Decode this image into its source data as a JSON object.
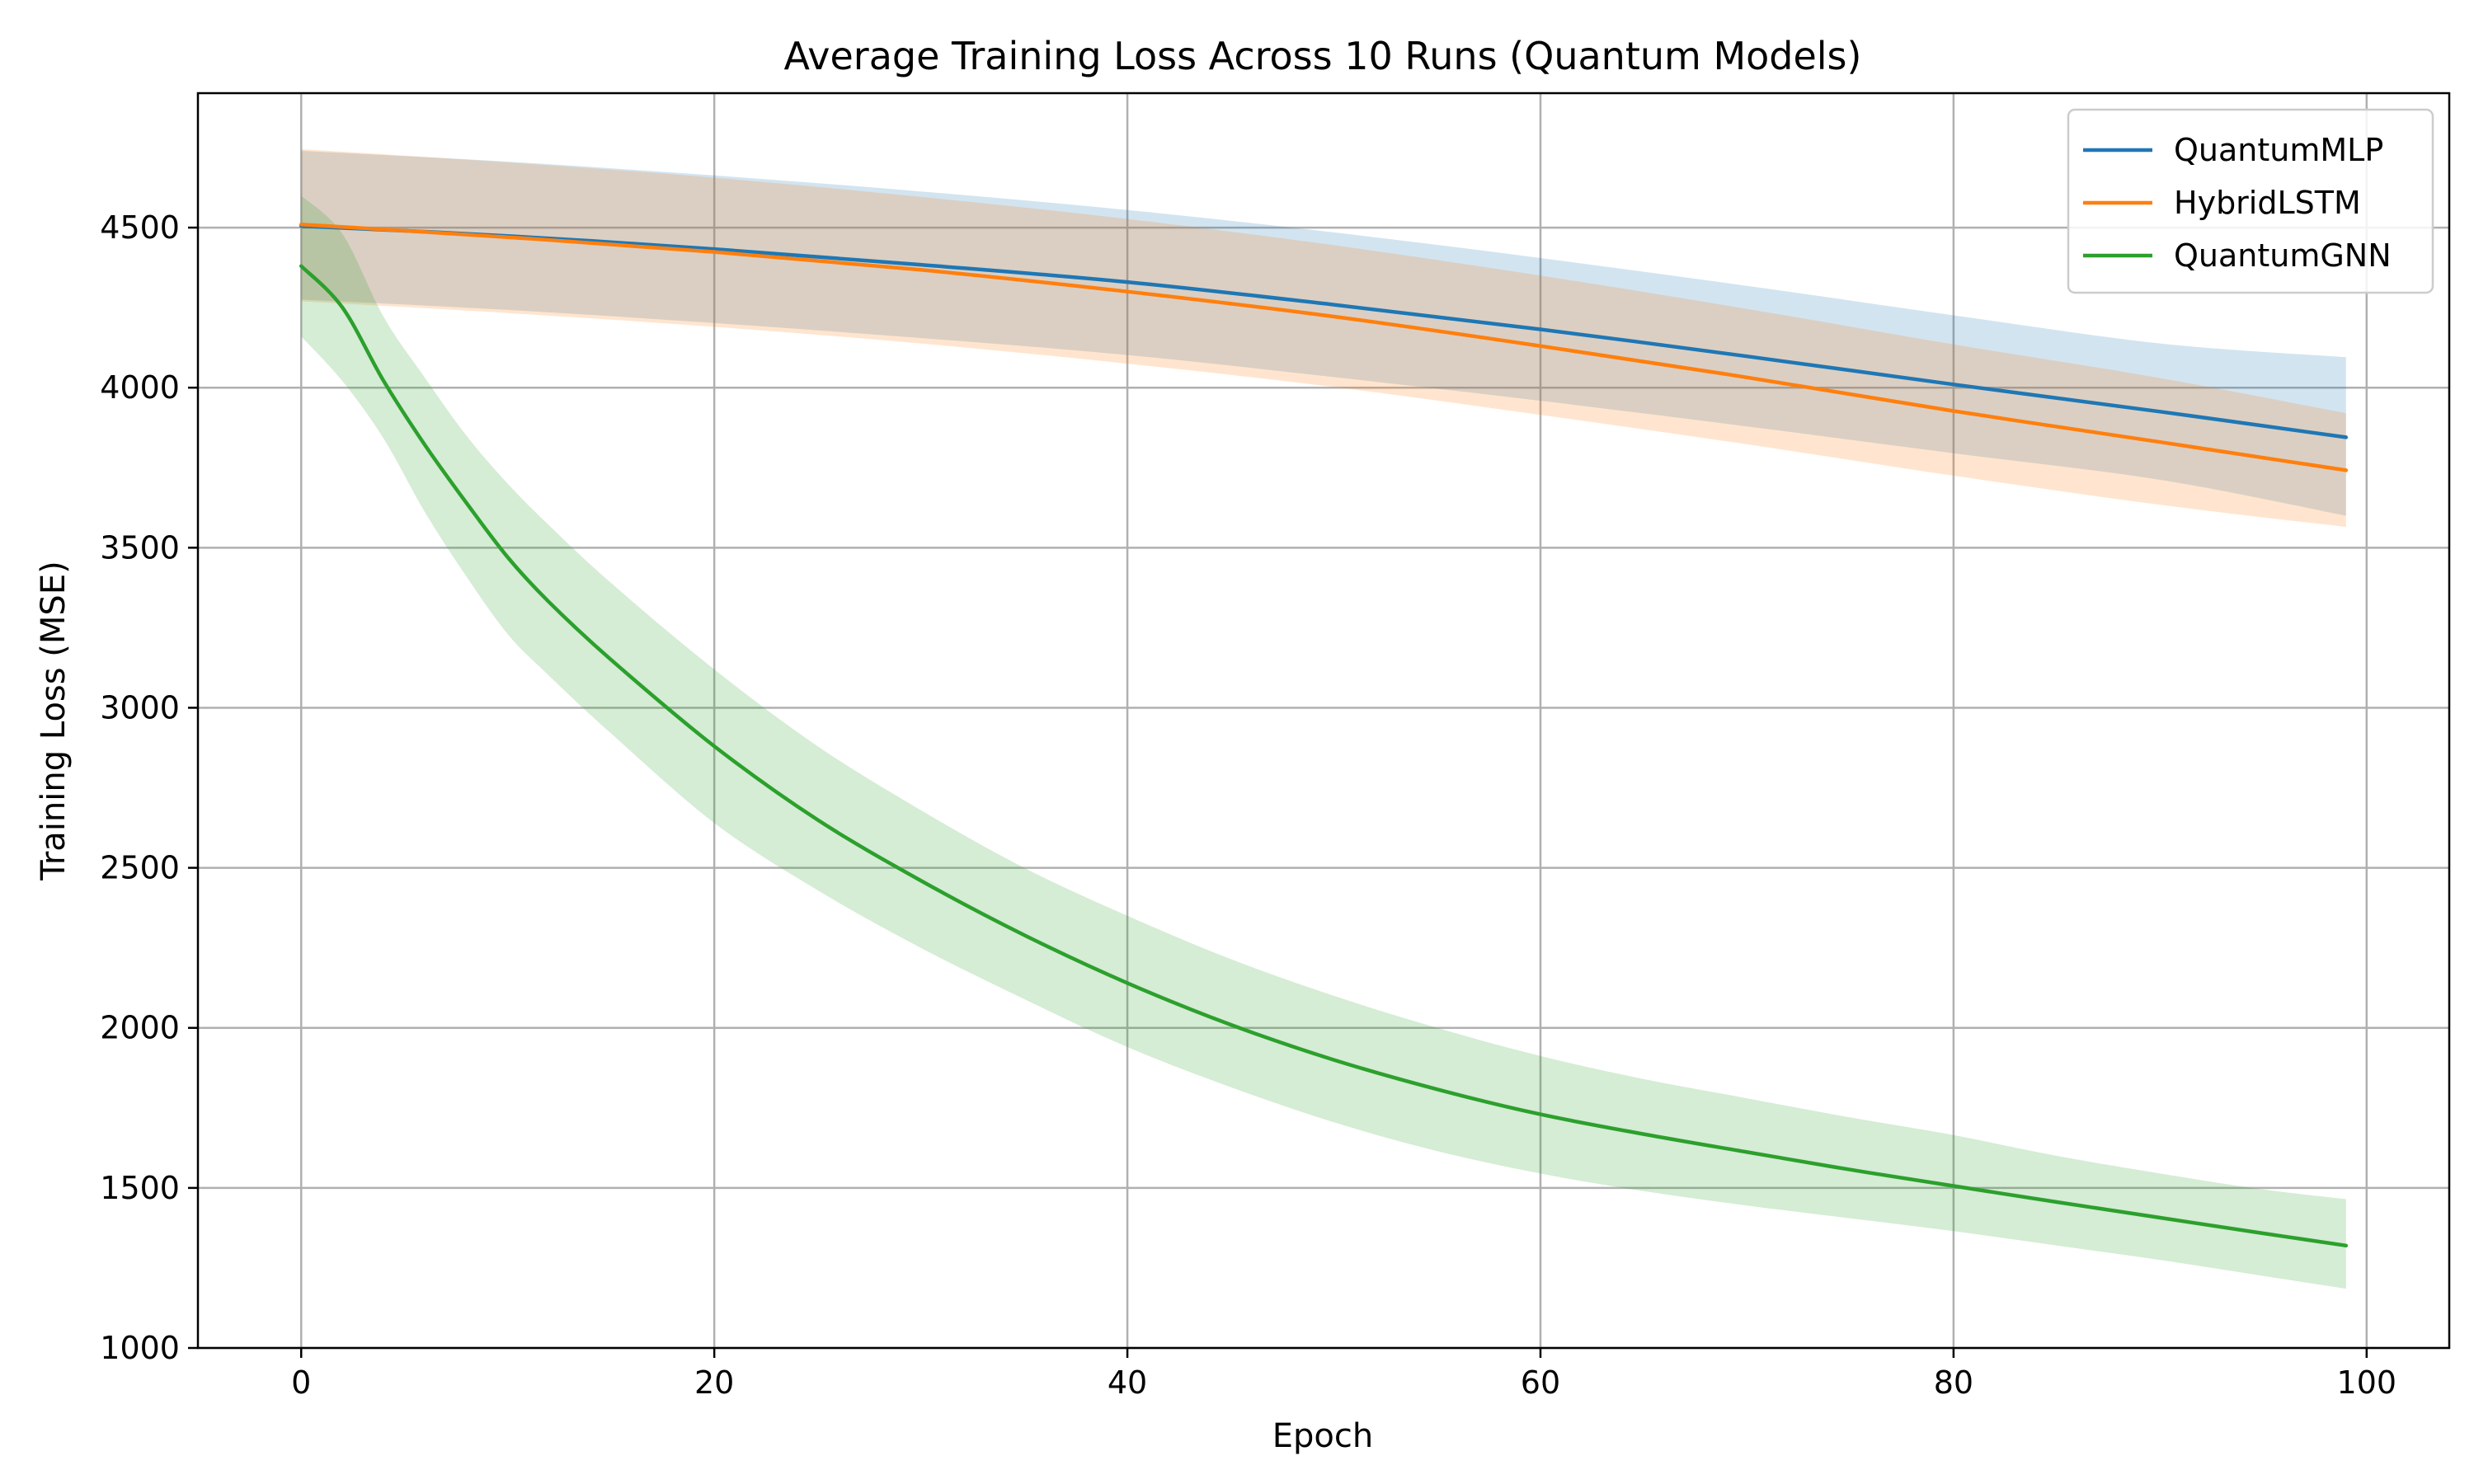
{
  "chart_data": {
    "type": "line",
    "title": "Average Training Loss Across 10 Runs (Quantum Models)",
    "xlabel": "Epoch",
    "ylabel": "Training Loss (MSE)",
    "xlim": [
      -5,
      104
    ],
    "ylim": [
      1000,
      4920
    ],
    "xticks": [
      0,
      20,
      40,
      60,
      80,
      100
    ],
    "yticks": [
      1000,
      1500,
      2000,
      2500,
      3000,
      3500,
      4000,
      4500
    ],
    "grid": true,
    "legend_position": "top-right",
    "series": [
      {
        "name": "QuantumMLP",
        "color": "#1f77b4",
        "band_color": "#1f77b4",
        "x": [
          0,
          10,
          20,
          30,
          40,
          50,
          60,
          70,
          80,
          90,
          99
        ],
        "mean": [
          4505,
          4474,
          4433,
          4384,
          4330,
          4259,
          4182,
          4098,
          4010,
          3925,
          3845
        ],
        "lower": [
          4275,
          4243,
          4202,
          4155,
          4102,
          4033,
          3959,
          3879,
          3795,
          3712,
          3600
        ],
        "upper": [
          4740,
          4706,
          4663,
          4613,
          4555,
          4485,
          4405,
          4318,
          4226,
          4138,
          4095
        ]
      },
      {
        "name": "HybridLSTM",
        "color": "#ff7f0e",
        "band_color": "#ff7f0e",
        "x": [
          0,
          10,
          20,
          30,
          40,
          50,
          60,
          70,
          80,
          90,
          99
        ],
        "mean": [
          4510,
          4470,
          4424,
          4368,
          4300,
          4222,
          4130,
          4032,
          3927,
          3830,
          3742
        ],
        "lower": [
          4270,
          4233,
          4190,
          4138,
          4075,
          4002,
          3915,
          3823,
          3725,
          3634,
          3565
        ],
        "upper": [
          4745,
          4704,
          4656,
          4596,
          4527,
          4445,
          4350,
          4246,
          4135,
          4030,
          3920
        ]
      },
      {
        "name": "QuantumGNN",
        "color": "#2ca02c",
        "band_color": "#2ca02c",
        "x": [
          0,
          2,
          4,
          6,
          8,
          10,
          12,
          15,
          20,
          25,
          30,
          35,
          40,
          45,
          50,
          55,
          60,
          65,
          70,
          75,
          80,
          85,
          90,
          95,
          99
        ],
        "mean": [
          4380,
          4250,
          4020,
          3820,
          3640,
          3470,
          3330,
          3150,
          2880,
          2650,
          2460,
          2290,
          2140,
          2010,
          1900,
          1808,
          1730,
          1668,
          1612,
          1557,
          1506,
          1456,
          1407,
          1358,
          1320
        ],
        "lower": [
          4160,
          4020,
          3840,
          3610,
          3410,
          3230,
          3100,
          2920,
          2640,
          2430,
          2250,
          2090,
          1940,
          1815,
          1705,
          1615,
          1545,
          1490,
          1445,
          1405,
          1365,
          1320,
          1275,
          1225,
          1185
        ],
        "upper": [
          4600,
          4480,
          4220,
          4030,
          3850,
          3700,
          3570,
          3390,
          3120,
          2880,
          2680,
          2500,
          2350,
          2215,
          2100,
          2000,
          1912,
          1840,
          1780,
          1720,
          1665,
          1600,
          1545,
          1495,
          1465
        ]
      }
    ]
  }
}
